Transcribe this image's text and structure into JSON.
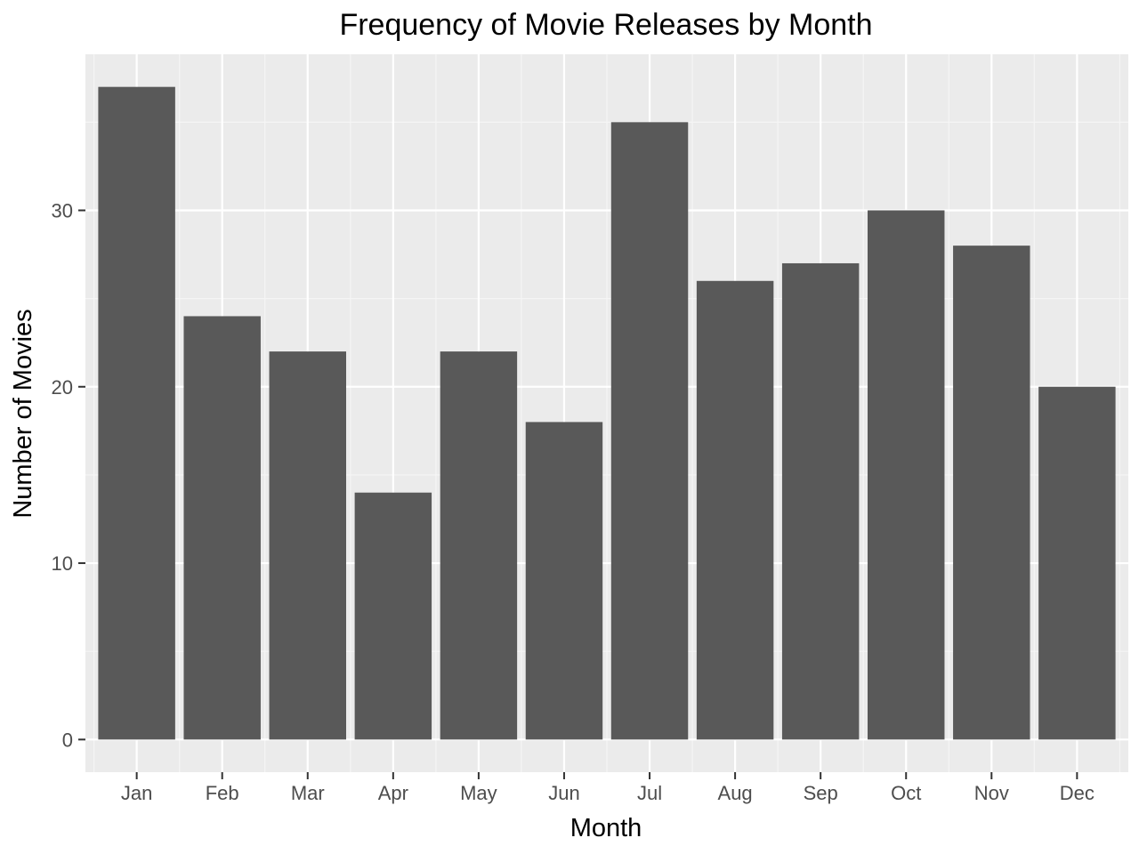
{
  "chart_data": {
    "type": "bar",
    "title": "Frequency of Movie Releases by Month",
    "xlabel": "Month",
    "ylabel": "Number of Movies",
    "categories": [
      "Jan",
      "Feb",
      "Mar",
      "Apr",
      "May",
      "Jun",
      "Jul",
      "Aug",
      "Sep",
      "Oct",
      "Nov",
      "Dec"
    ],
    "values": [
      37,
      24,
      22,
      14,
      22,
      18,
      35,
      26,
      27,
      30,
      28,
      20
    ],
    "ylim": [
      -1.85,
      38.85
    ],
    "yticks": [
      0,
      10,
      20,
      30
    ],
    "yticklabels": [
      "0",
      "10",
      "20",
      "30"
    ],
    "grid": true,
    "legend": "none",
    "colors": {
      "panel": "#ebebeb",
      "grid_major": "#ffffff",
      "grid_minor": "#f5f5f5",
      "bar": "#595959",
      "tick": "#333333"
    }
  }
}
